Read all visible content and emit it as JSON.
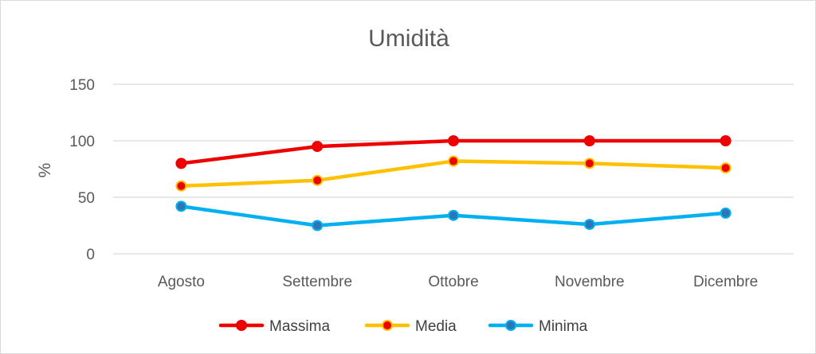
{
  "chart_data": {
    "type": "line",
    "title": "Umidità",
    "xlabel": "",
    "ylabel": "%",
    "ylim": [
      0,
      150
    ],
    "yticks": [
      0,
      50,
      100,
      150
    ],
    "grid": true,
    "legend_position": "bottom",
    "categories": [
      "Agosto",
      "Settembre",
      "Ottobre",
      "Novembre",
      "Dicembre"
    ],
    "series": [
      {
        "name": "Massima",
        "color": "#ee0000",
        "marker_fill": "#ee0000",
        "marker_stroke": "#ee0000",
        "values": [
          80,
          95,
          100,
          100,
          100
        ]
      },
      {
        "name": "Media",
        "color": "#ffc000",
        "marker_fill": "#ee0000",
        "marker_stroke": "#ffc000",
        "values": [
          60,
          65,
          82,
          80,
          76
        ]
      },
      {
        "name": "Minima",
        "color": "#00b0f0",
        "marker_fill": "#2e75b6",
        "marker_stroke": "#00b0f0",
        "values": [
          42,
          25,
          34,
          26,
          36
        ]
      }
    ]
  }
}
